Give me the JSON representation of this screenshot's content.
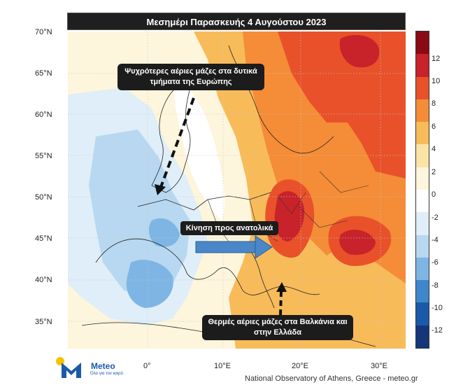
{
  "title": "Μεσημέρι Παρασκευής 4 Αυγούστου 2023",
  "map": {
    "lat_labels": [
      "70°N",
      "65°N",
      "60°N",
      "55°N",
      "50°N",
      "45°N",
      "40°N",
      "35°N"
    ],
    "lon_labels": [
      "0°",
      "10°E",
      "20°E",
      "30°E"
    ]
  },
  "colorbar": {
    "labels": [
      "12",
      "10",
      "8",
      "6",
      "4",
      "2",
      "0",
      "-2",
      "-4",
      "-6",
      "-8",
      "-10",
      "-12"
    ],
    "colors": [
      "#8b0a14",
      "#c8222a",
      "#e8512a",
      "#f58c37",
      "#f8bb5a",
      "#fbe3a6",
      "#fdf5dc",
      "#ffffff",
      "#dfeef8",
      "#b7d8f0",
      "#7eb5e4",
      "#3f87cc",
      "#1a5aa8",
      "#16367a"
    ]
  },
  "annotations": {
    "west_line1": "Ψυχρότερες αέριες μάζες στα δυτικά",
    "west_line2": "τμήματα της Ευρώπης",
    "east_movement": "Κίνηση προς ανατολικά",
    "balkans_line1": "Θερμές αέριες μάζες στα Βαλκάνια και",
    "balkans_line2": "στην Ελλάδα"
  },
  "logo": {
    "name": "Meteo",
    "subtitle": "Όλα για τον καιρό"
  },
  "credit": "National Observatory of Athens, Greece - meteo.gr"
}
